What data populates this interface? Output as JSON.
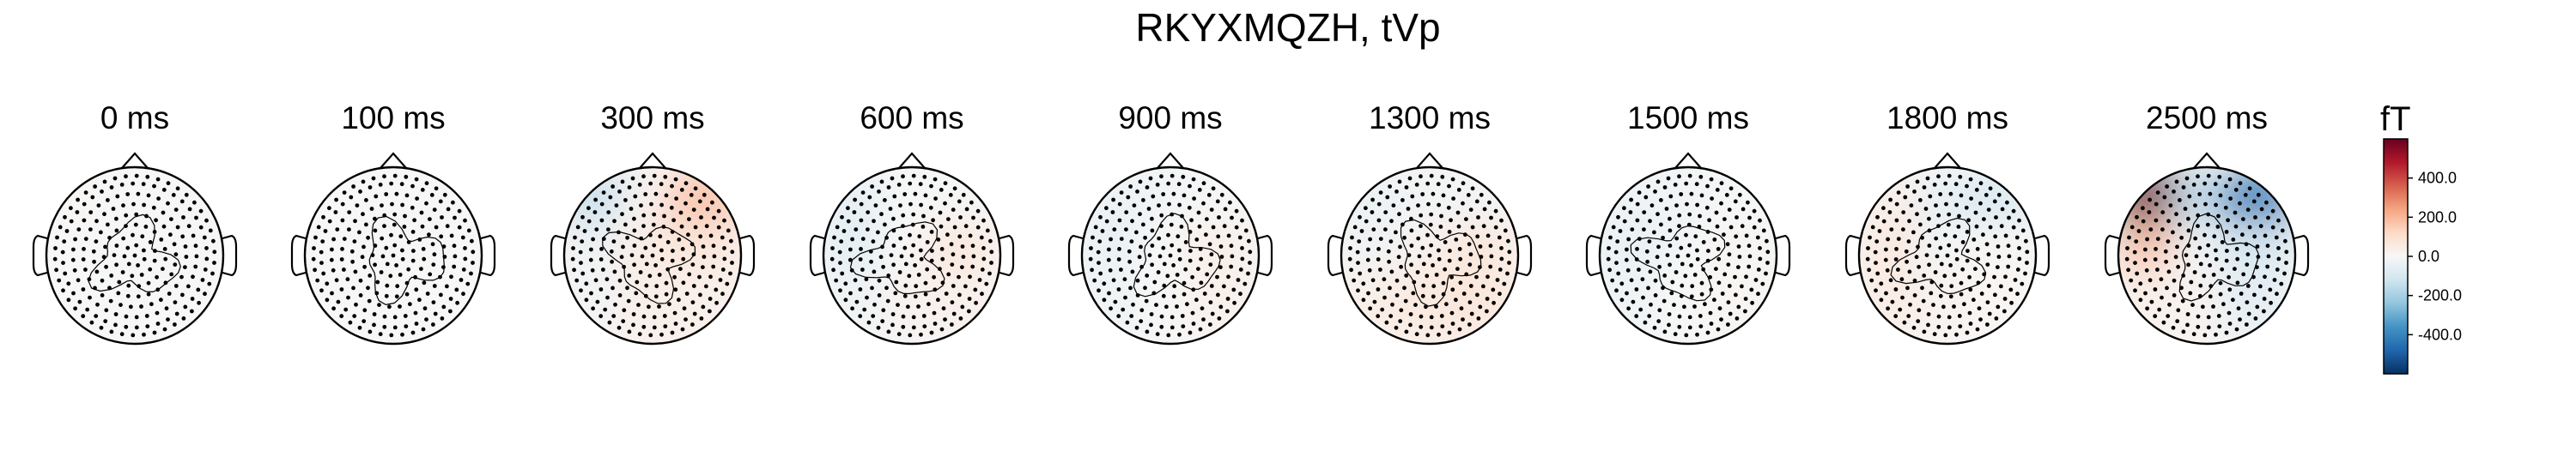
{
  "figure": {
    "title": "RKYXMQZH, tVp"
  },
  "chart_data": {
    "type": "topomap",
    "title": "RKYXMQZH, tVp",
    "time_unit": "ms",
    "panels": [
      {
        "label": "0 ms",
        "time": 0,
        "pattern": [
          10,
          0,
          5,
          0,
          -5,
          -5,
          0,
          0,
          0
        ]
      },
      {
        "label": "100 ms",
        "time": 100,
        "pattern": [
          0,
          0,
          -5,
          0,
          5,
          0,
          0,
          0,
          0
        ]
      },
      {
        "label": "300 ms",
        "time": 300,
        "pattern": [
          -150,
          10,
          180,
          -30,
          50,
          70,
          -20,
          40,
          30
        ]
      },
      {
        "label": "600 ms",
        "time": 600,
        "pattern": [
          -60,
          0,
          -10,
          -70,
          0,
          70,
          -30,
          20,
          30
        ]
      },
      {
        "label": "900 ms",
        "time": 900,
        "pattern": [
          -40,
          -20,
          -10,
          -50,
          0,
          40,
          -30,
          0,
          30
        ]
      },
      {
        "label": "1300 ms",
        "time": 1300,
        "pattern": [
          -40,
          -20,
          -20,
          -30,
          20,
          70,
          40,
          60,
          70
        ]
      },
      {
        "label": "1500 ms",
        "time": 1500,
        "pattern": [
          -30,
          -20,
          -5,
          -50,
          -20,
          10,
          -30,
          0,
          10
        ]
      },
      {
        "label": "1800 ms",
        "time": 1800,
        "pattern": [
          40,
          -50,
          -100,
          70,
          -20,
          10,
          50,
          20,
          10
        ]
      },
      {
        "label": "2500 ms",
        "time": 2500,
        "pattern": [
          600,
          -150,
          -420,
          180,
          -20,
          -100,
          30,
          20,
          -60
        ]
      }
    ],
    "colorbar": {
      "unit": "fT",
      "range": [
        -600,
        600
      ],
      "ticks": [
        400,
        200,
        0,
        -200,
        -400
      ],
      "tick_labels": [
        "400.0",
        "200.0",
        "0.0",
        "-200.0",
        "-400.0"
      ],
      "colormap": "RdBu_r"
    }
  }
}
